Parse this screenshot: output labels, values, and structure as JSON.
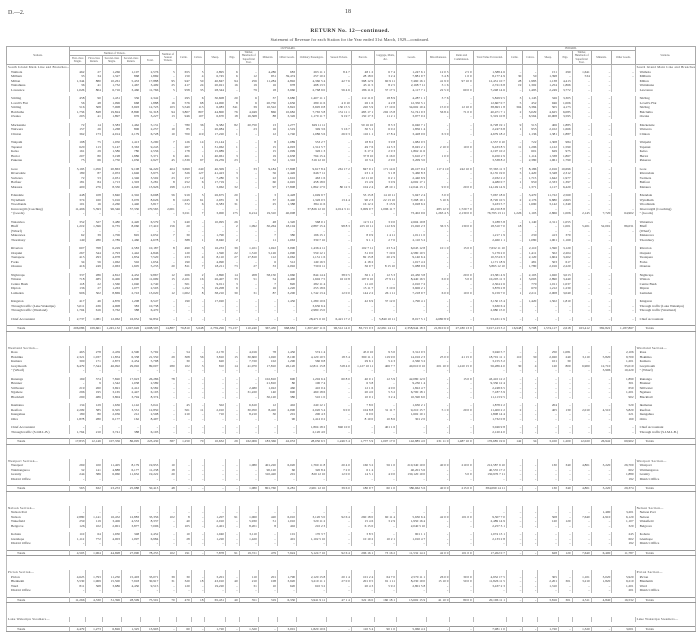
{
  "page": {
    "ref": "D.—2.",
    "number": "18",
    "title": "RETURN No. 12—continued.",
    "subtitle": "Statement of Revenue for each Station for the Year ended 31st March, 1929—continued."
  },
  "headers": {
    "stations": "Stations.",
    "outward": "OUTWARD.",
    "inward": "INWARD.",
    "tickets_group": "Number of Tickets.",
    "tickets": [
      "First-class Single.",
      "First-class Return.",
      "Second-class Single.",
      "Second-class Return.",
      "Total."
    ],
    "season": "Number of Season Tickets.",
    "outward_cols": [
      "Cattle.",
      "Calves.",
      "Sheep.",
      "Pigs.",
      "Timber, Hundreds of Superficial Feet.",
      "Minerals.",
      "Other Goods.",
      "Ordinary Passengers.",
      "Season Tickets.",
      "Parcels.",
      "Luggage, Mails, &c.",
      "Goods.",
      "Miscellaneous.",
      "Rents and Commission.",
      "Total Value Forwarded."
    ],
    "inward_cols": [
      "Cattle.",
      "Calves.",
      "Sheep.",
      "Pigs.",
      "Timber, Hundreds of Superficial Feet.",
      "Minerals.",
      "Other Goods."
    ],
    "units": [
      "Tons.",
      "Tons.",
      "£ s. d.",
      "Tons.",
      "Tons."
    ]
  },
  "sections": [
    {
      "name": "South Island Main Line and Branches—continued.",
      "groups": [
        [
          [
            "Waihola",
            "462;27;1,266;1,107;2,576;5;655;5;2,895;6;..;4,286;683;263 11 1;8 4 7;48 1 2;6 7 4;1,247 6 1;12 0 3;2 5 0;1,588 4 6;..;..;151;290;1,641;..;.."
          ],
          [
            "Milburn",
            "33;34;1,327;868;1,869;..;150;4;6,745;6;12;951;39,474;257 10 2;..;28 18 0;3 2 4;7,881 9 7;5 4 8;1 0 0;8,177 4 9;30;50;1,398;..;534;..;.."
          ],
          [
            "Milton",
            "1,344;880;10,261;5,433;17,888;95;947;50;40,847;94;256;11,284;4,892;4,360 5 4;42 7 6;368 12 9;60 9 11;7,460 16 1;41 9 0;97 10 0;12,431 10 7;28;1,983;1,138;4,413;..;.."
          ],
          [
            "Waitahuna",
            "36;41;1,732;1,467;3,409;25;417;24;20,021;16;19;16;978;498 13 5;..;43 11 5;8 2 5;2,168 7 11;3 1 6;..;2,721 6 8;19;1,302;1,254;1,866;..;.."
          ],
          [
            "Lawrence",
            "1,026;804;6,716;3,460;11,766;5;958;35;28,344;..;79;18;3,960;2,768 9 0;56 4 6;186 11 6;37 17 5;4,117 7 1;22 5 0;60 0 0;7,248 14 6;..;1,495;2,249;3,772;..;.."
          ]
        ],
        [
          [
            "Stirling",
            "458;90;1,431;336;2,342;..;295;6;30,608;20;6;37;3,680;1,407 11 1;..;112 11 0;18 8 9;4,287 1 1;3 7 6;..;5,829 9 5;3;1,145;326;3,305;..;.."
          ],
          [
            "Lovell's Flat",
            "56;48;1,096;668;1,888;16;576;68;14,000;8;6;20,750;1,656;280 11 6;4 0 10;26 1 6;4 2 8;12,350 5 1;..;..;12,667 0 7;5;452;946;1,006;..;.."
          ],
          [
            "Stirling",
            "516;508;7,008;3,693;12,723;103;5,549;113;6,083;341;39;10,522;3,822;3,695 0 8;130 15 5;220 5 9;17 10 6;34,602 19 4;15 0 0;12 10 0;38,693 1 8;304;3,384;505;4,173;..;.."
          ],
          [
            "Balclutha",
            "1,756;848;19,824;8,890;31,318;94;3,807;807;44,800;76;4,049;866;10,682;7,765 5 8;151 11 1;483 17 1;202 15 8;31,741 9 3;56 8 4;71 0 0;40,471 7 1;2;3,029;4,625;6,085;..;.."
          ],
          [
            "Owaka",
            "203;41;1,897;976;3,227;13;946;107;6,670;18;16,368;88;3,326;1,170 11 7;9 19 7;150 17 3;11 2 1;3,977 0 2;..;..;5,319 10 8;..;6,564;10,908;3,595;..;.."
          ]
        ],
        [
          [
            "Mackenzie",
            "72;14;3,583;1,462;5,131;..;780;36;9,382;82;20,750;13;1,277;629 11 11;..;50 16 10;8 3 3;6,040 7 1;..;..;6,728 19 1;9;513;406;1,885;..;.."
          ],
          [
            "Waiwera",
            "157;26;1,268;806;2,257;10;85;..;20,084;..;23;16;1,519;349 3 6;5 16 7;30 5 1;6 0 2;1,856 1 4;..;..;2,247 6 8;1;955;2,102;1,666;..;.."
          ],
          [
            "Clinton",
            "362;173;4,014;2,179;6,728;10;700;119;17,220;1;..;12;1,740;1,086 5 6;26 0 3;116 1 1;17 8 4;3,428 0 0;6 3 0;..;4,679 18 2;..;1,136;1,381;1,887;..;.."
          ]
        ],
        [
          [
            "Waipahi",
            "198;75;1,050;1,413;3,290;7;126;14;15,144;..;..;8;1,089;553 2 7;..;18 8 2;3 9 8;1,982 0 5;..;..;2,557 0 10;..;722;1,308;984;..;.."
          ],
          [
            "Tapanui",
            "620;113;5,147;3,363;9,243;..;267;1;31,062;1;..;15;4,093;1,312 5 7;..;49 7 6;14 3 3;8,045 2 1;2 10 0;10 0 0;9,433 8 5;11;1,296;1,122;1,590;..;.."
          ],
          [
            "Kelso",
            "161;29;1,586;780;2,556;..;178;..;15,989;..;..;15;1,099;326 1 3;..;6 17 2;2 0 3;1,862 11 6;..;..;2,197 10 2;..;601;629;975;..;.."
          ],
          [
            "Heriot",
            "207;80;3,198;1,886;5,371;6;401;1;40,961;3;..;19;2,638;794 15 4;..;37 8 10;6 16 0;5,610 2 7;1 0 0;..;6,450 2 9;..;1,114;1,338;1,867;..;.."
          ],
          [
            "Pukerau",
            "75;66;1,750;1,036;2,927;45;1,339;97;19,259;23;..;52;1,316;316 12 10;..;10 3 4;2 9 0;3,209 3 0;..;..;3,538 8 2;..;2,380;1,961;1,790;..;.."
          ]
        ],
        [
          [
            "Gore",
            "3,193;1,056;20,863;9,108;34,220;404;3,699;240;40,309;..;33;9,184;17,808;9,617 8 4;261 17 2;847 9 1;171 14 6;26,107 9 4;117 2 10;242 10 0;37,365 11 3;7;8,186;2,916;10,696;..;.."
          ],
          [
            "Riversdale",
            "189;87;2,053;1,646;3,975;12;326;127;41,423;3;..;56;2,426;646 7 11;..;23 1 2;5 1 8;5,460 8 3;..;..;6,135 19 0;5;1,420;3,348;2,312;..;.."
          ],
          [
            "Switzers",
            "72;53;2,031;1,346;3,502;23;157;12;7,280;3;..;22;1,616;463 1 6;..;22 11 10;6 2 1;2,440 6 9;..;..;2,932 2 2;..;1,715;1,642;1,977;..;.."
          ],
          [
            "Balfour",
            "181;84;1,713;1,303;3,281;8;252;6;17,719;..;..;60;2,045;458 18 0;..;15 4 9;3 0 9;4,002 17 1;..;..;4,480 0 7;1;950;2,333;1,397;..;.."
          ],
          [
            "Mataura",
            "400;276;8,330;4,920;13,926;198;1,133;1;3,062;32;..;97;17,808;1,862 17 0;80 12 3;104 2 4;28 10 1;12,044 13 1;9 0 0;20 0 0;14,149 14 9;..;1,371;1,117;6,420;..;.."
          ]
        ],
        [
          [
            "Edendale",
            "448;108;3,840;2,302;6,698;56;919;5;26,675;20;..;3;2,428;1,049 9 7;..;53 15 8;14 10 11;5,947 2 4;3 0 0;..;7,067 18 6;..;3,470;11,722;2,569;..;.."
          ],
          [
            "Wyndham",
            "374;160;5,016;3,076;8,626;8;1,045;61;2,935;9;..;37;3,440;1,326 0 5;13 4 4;90 2 3;22 13 10;7,268 19 1;5 10 6;..;8,726 10 5;2;2,176;9,880;2,663;..;.."
          ],
          [
            "Woodlands",
            "101;16;2,260;1,440;3,817;..;372;6;6,583;31;..;25;1,388;384 11 6;..;16 12 2;3 15 9;3,028 6 2;..;..;3,433 5 7;..;1,690;3,142;1,349;..;.."
          ],
          [
            "Invercargill (Coaching)",
            "11,496;5,393;96,346;57,330;170,565;2,001;..;..;..;..;..;..;..;37,826 12 10;2,014 3 11;3,009 0 7;1,096 11 7;..;483 12 9;1,720 7 0;46,150 8 8;..;..;..;..;..;..;.."
          ],
          [
            "      \"      (Goods)",
            "..;..;..;..;..;..;3,011;7;3,000;175;6,214;19,310;40,008;..;..;..;..;73,402 9 6;1,263 4 5;2,130 0 0;76,795 13 11;1,226;1,103;2,866;1,006;2,145;7,720;64,902"
          ]
        ],
        [
          [
            "Waianiwa",
            "352;327;3,480;2,420;6,579;3;240;..;10,095;26;..;48;1,320;568 0 1;..;12 5 11;3 0 0;2,604 19 8;..;..;3,188 5 8;..;1,140;2,311;1,055;..;.."
          ],
          [
            "Bluff",
            "1,219;1,396;6,735;8,060;17,410;156;20;..;..;2;1,092;30,264;18,104;2,887 15 4;98 8 3;225 10 11;112 6 9;15,020 2 3;36 3 5;130 0 0;18,510 7 0;18;..;..;1,001;5,201;52,091;86,031"
          ],
          [
            "      (Wharf)",
            "..;..;..;..;..;..;..;..;..;..;..;..;..;..;..;..;..;..;..;..;..;..;..;..;..;..;..;.."
          ],
          [
            "Makarewa",
            "62;39;1,706;845;2,652;7;30;..;1,790;..;..;7;380;196 15 1;..;8 0 9;1 4 11;1,011 1 0;..;..;1,217 1 9;..;230;413;370;..;.."
          ],
          [
            "Thornbury",
            "149;280;2,789;1,460;4,678;..;388;1;8,940;2;..;11;1,063;339 7 10;..;9 1 1;2 7 0;2,110 5 2;..;..;2,460 1 1;..;1,080;1,901;1,169;..;.."
          ]
        ],
        [
          [
            "Riverton",
            "607;768;6,229;2,583;10,187;8;490;3;16,233;39;1,101;1,022;3,090;1,436 4 11;..;102 7 11;23 5 4;6,045 12 8;10 1 0;15 0 0;7,632 11 10;..;2,110;1,590;3,120;..;.."
          ],
          [
            "Orepuki",
            "267;344;2,793;1,442;4,846;..;120;..;1,590;22;1,310;5,126;1,090;559 12 1;..;31 0 0;7 19 6;4,580 10 5;..;..;5,179 2 0;..;1,411;502;2,204;..;.."
          ],
          [
            "Tuatapere",
            "415;293;4,978;1,834;7,520;..;233;4;8,110;27;17,810;112;2,062;1,131 1 6;..;82 15 8;20 2 9;9,140 6 4;..;..;10,374 6 3;..;2,120;1,604;3,202;..;.."
          ],
          [
            "Forks",
            "34;56;1,062;502;1,654;..;190;..;4,090;..;..;6;512;149 16 5;..;4 18 2;..;1,017 4 2;..;..;1,171 18 9;..;481;503;617;..;.."
          ],
          [
            "Otautau",
            "416;249;2,963;1,605;5,233;20;811;7;18,211;73;27;33;2,092;730 6 11;..;36 0 7;8 15 10;5,088 9 6;..;..;5,863 12 10;..;1,780;2,016;2,220;..;.."
          ]
        ],
        [
          [
            "Nightcaps",
            "337;286;4,812;4,432;9,867;12;206;2;2,890;14;208;58,150;1,960;844 14 4;38 0 5;36 1 1;12 5 3;22,430 3 8;..;20 0 0;23,381 4 9;..;2,103;1,920;3,013;..;.."
          ],
          [
            "Winton",
            "718;485;6,406;4,090;11,699;15;2,101;16;26,407;33;51;54;4,400;1,602 7 5;16 10 8;107 6 10;27 9 11;8,440 16 5;6 0 0;5 0 0;10,205 11 3;1;3,003;2,890;3,440;..;.."
          ],
          [
            "Centre Bush",
            "118;22;1,560;1,040;2,740;..;501;..;9,011;3;..;7;820;282 11 4;..;11 4 0;..;2,010 7 2;..;..;2,304 2 6;..;770;1,011;1,037;..;.."
          ],
          [
            "Dipton",
            "136;27;1,263;1,077;2,503;..;1,192;3;19,208;9;..;16;1,220;253 18 6;..;15 11 7;3 10 6;3,606 2 1;..;..;3,879 2 8;..;670;1,212;1,230;..;.."
          ],
          [
            "Lumsden",
            "906;502;8,869;2,743;13,020;12;1,002;8;38,210;30;31;87;3,200;1,742 13 4;12 0 0;144 2 2;26 1 11;7,218 9 7;6 0 0;10 0 0;9,159 7 0;1;2,211;2,008;3,040;..;.."
          ]
        ],
        [
          [
            "Kingston",
            "417;46;4,876;1,208;6,547;..;190;..;17,020;..;..;..;1,450;1,280 10 6;..;42 6 9;37 12 0;1,790 4 1;..;..;3,150 13 4;..;1,420;1,502;1,810;..;.."
          ],
          [
            "Through traffic (Lake Wakatipu)",
            "5,011;436;4,908;383;10,738;..;..;..;..;..;..;..;..;3,630 6 4;..;..;..;..;..;..;3,630 6 4;..;..;..;..;..;..;.."
          ],
          [
            "Through traffic (Westland)",
            "1,704;616;3,762;388;6,470;..;..;..;..;..;..;..;..;2,980 15 0;..;..;..;..;..;..;2,980 15 0;..;..;..;..;..;..;.."
          ]
        ],
        [
          [
            "Chief Accountant",
            "2,737;1,081;12,062;16,952;32,832;..;..;..;..;..;..;..;..;28,471 0 10;6,421 17 2;..;5,840 10 11;8,017 5 1;4,680 8 9;..;53,431 2 9;..;..;..;..;..;..;.."
          ]
        ]
      ],
      "totals": "206,086;109,661;1,245,132;1,047,626;2,608,505;14,887;76,810;3,648;2,759,296;73,137;110,240;367,430;968,682;1,307,467 11 6;96,512 14 0;83,715 0 3;22,091 14 11;2,358,944 18 3;21,810 6 0;27,180 13 0;3,917,123 3 2;16,948;3,708;1,574,117;2,618;163,412;382,822;1,187,867"
    },
    {
      "name": "Westland Section—",
      "groups": [
        [
          [
            "Ross",
            "465;278;2,459;2,590;5,792;..;54;..;2,170;..;4,016;78;1,450;574 1 4;..;45 0 10;9 3 0;3,312 0 5;..;..;3,940 5 7;..;..;250;1,081;..;..;2,106"
          ],
          [
            "Hokitika",
            "2,321;1,037;11,854;6,338;21,550;29;308;56;3,810;15;30,600;1,020;8,100;4,120 10 5;18 3 4;360 11 1;119 9 0;14,016 2 3;25 0 0;41 15 0;18,701 11 1;110;30;2,020;240;3,110;5,820;9,700"
          ],
          [
            "Kumara",
            "300;171;2,873;2,454;5,798;..;30;..;620;..;7,720;102;1,290;560 9 8;..;29 6 1;5 4 3;2,560 3 2;..;..;3,155 3 2;..;..;101;30;..;..;1,201"
          ],
          [
            "Greymouth",
            "6,479;7,344;46,092;29,092;89,007;280;102;3;810;14;41,070;17,810;26,120;12,811 15 8;318 4 0;1,127 10 11;406 7 7;40,010 0 10;201 10 0;1,410 15 0;56,286 4 0;30;4;120;800;6,900;12,710;35,010"
          ],
          [
            "      \"      (Wharf)",
            "..;..;..;..;..;..;..;..;..;..;..;..;..;..;..;..;..;..;..;..;..;..;..;..;..;..;3,906;10,220"
          ]
        ],
        [
          [
            "Runanga",
            "169;374;7,820;17,923;26,286;78;..;..;..;..;..;102,810;690;1,202 6 4;60 8 0;40 0 1;12 5 9;42,080 12 0;..;15 0 0;43,410 12 2;..;..;..;..;..;..;1,890"
          ],
          [
            "Brunner",
            "..;9;1,542;1,038;2,589;..;..;..;..;..;..;21,810;80;100 7 4;..;6 3 8;..;9,230 1 4;..;..;9,336 12 4;..;..;..;..;..;..;301"
          ],
          [
            "Stillwater",
            "219;260;3,691;2,412;6,582;..;..;..;..;..;2,480;1,022;460;410 0 4;..;12 1 6;4 0 0;1,822 4 7;..;..;2,248 6 5;..;..;..;..;..;..;650"
          ],
          [
            "Ngahere",
            "296;195;3,165;2,447;6,103;..;..;..;..;..;31,220;140;690;460 18 6;..;20 4 0;5 3 2;6,700 18 1;..;..;7,187 3 9;..;..;..;..;..;..;1,201"
          ],
          [
            "Blackball",
            "290;486;3,804;3,794;8,374;..;..;..;..;..;..;30,120;380;510 1 0;..;10 0 1;3 2 4;10,590 6 0;..;..;11,113 9 5;..;..;..;..;..;..;902"
          ]
        ],
        [
          [
            "Ikamatua",
            "134;129;1,636;1,142;3,041;..;45;..;502;..;6,610;12;402;240 12 1;..;7 8 0;..;1,630 2 1;..;..;1,878 2 2;..;..;204;..;..;..;520"
          ],
          [
            "Reefton",
            "2,209;585;6,505;3,551;12,850;..;501;11;2,010;..;30,050;8,420;2,090;2,020 5 4;9 0 0;104 8 8;31 11 7;9,210 15 7;5 1 0;20 0 0;11,400 2 2;2;..;405;130;2,010;4,510;5,820"
          ],
          [
            "Inangahua",
            "180;80;2,036;212;2,508;..;210;..;710;..;8,210;30;201;200 4 3;..;6 0 0;..;1,602 10 1;..;..;1,808 14 4;..;..;..;..;..;..;221"
          ],
          [
            "Otira",
            "1,878;280;6,177;162;8,497;..;..;..;..;..;..;..;90;1,412 0 2;..;8 10 0;10 8 6;301 2 0;..;..;1,732 0 8;..;..;..;..;..;..;160"
          ]
        ],
        [
          [
            "Chief Accountant",
            "..;..;..;..;..;..;..;..;..;..;..;..;..;1,804 18 2;840 10 0;..;401 1 6;..;..;..;3,046 9 8;..;..;..;..;..;..;.."
          ],
          [
            "Through traffic (S.I.M.L.B.)",
            "1,764;210;3,741;388;6,103;..;..;..;..;..;..;..;..;2,120 4 0;..;..;..;..;..;..;2,120 4 0;..;..;..;..;..;..;.."
          ]
        ]
      ],
      "totals": "17,833;12,146;107,356;86,095;223,430;387;1,250;70;10,632;29;162,006;183,366;42,053;28,050 6 5;1,246 5 4;1,777 5 9;1,007 17 0;142,885 4 0;231 11 0;1,487 10 0;176,685 19 6;142;34;3,100;1,200;12,020;26,942;69,902"
    },
    {
      "name": "Westport Section—",
      "groups": [
        [
          [
            "Westport",
            "269;100;11,405;8,179;19,953;10;..;..;..;..;1,080;401,220;6,020;1,760 11 8;20 4 0;160 3 2;56 1 0;210,340 10 0;40 0 0;210 0 0;212,587 9 10;..;..;130;340;4,801;3,220;26,700"
          ],
          [
            "Waimangaroa",
            "32;141;4,888;6,177;11,238;18;..;..;..;..;..;90,120;60;320 8 4;7 2 0;6 1 4;..;40,201 5 6;..;..;40,535 17 2;..;..;..;..;..;..;602"
          ],
          [
            "Granity",
            "244;386;6,960;11,632;19,222;20;..;..;..;..;..;310,420;201;820 12 10;12 0 0;14 5 1;4 0 0;130,120 10 0;..;5 0 0;130,976 7 11;..;..;..;..;..;..;1,880"
          ],
          [
            "District Office",
            "..;..;..;..;..;..;..;..;..;..;..;..;..;..;..;..;..;..;..;..;..;..;..;..;..;..;..;192"
          ]
        ]
      ],
      "totals": "565;632;23,253;25,988;50,413;48;..;..;..;..;1,080;801,760;6,281;2,901 12 10;39 6 0;180 9 7;60 1 0;380,662 5 6;40 0 0;215 0 0;384,099 14 11;..;..;130;340;4,801;3,220;29,374"
    },
    {
      "name": "Nelson Section—",
      "groups": [
        [
          [
            "Nelson Port",
            "..;..;..;..;..;..;..;..;..;..;..;..;..;..;..;..;..;..;..;..;..;..;..;..;..;..;1,490;3,201"
          ],
          [
            "Nelson",
            "2,880;1,141;16,452;12,883;33,356;102;8;..;1,207;91;1,060;420;6,010;3,120 5 0;92 6 4;260 18 0;60 11 4;5,630 6 4;42 0 0;101 0 0;9,307 7 0;..;..;508;..;7,640;4,910;6,120"
          ],
          [
            "Wakefield",
            "259;119;3,406;4,553;8,337;..;40;..;2,010;..;5,930;51;1,010;520 11 2;..;15 4 6;3 2 9;1,950 16 4;..;..;2,489 14 9;..;..;120;120;..;..;1,107"
          ],
          [
            "Belgrove",
            "126;102;2,901;3,877;7,006;..;105;..;2,401;..;8,201;8;402;210 2 3;..;6 15 0;..;2,040 5 10;..;..;2,257 3 1;..;..;..;..;..;..;320"
          ]
        ],
        [
          [
            "Kohatu",
            "110;64;1,930;348;2,452;..;10;..;1,040;..;3,110;..;101;170 3 7;..;3 8 5;..;901 1 1;..;..;1,074 13 1;..;..;..;..;..;..;245"
          ],
          [
            "Glenhope",
            "1,112;772;4,003;1,097;6,984;..;28;..;1,220;..;1,420;..;401;1,102 5 10;..;10 10 2;10 2 1;1,010 4 7;..;..;2,133 2 8;..;..;..;..;..;..;602"
          ],
          [
            "District Office",
            "..;..;..;..;..;..;..;..;..;..;..;..;..;..;..;..;..;..;..;..;..;..;..;..;..;..;..;192"
          ]
        ]
      ],
      "totals": "4,503;1,964;44,698;27,090;78,255;102;191;..;7,878;91;19,721;479;7,924;5,124 7 10;92 6 4;296 16 1;73 16 2;11,532 14 2;42 0 0;101 0 0;17,262 0 7;..;..;628;120;7,640;6,400;11,787"
    },
    {
      "name": "Picton Section—",
      "groups": [
        [
          [
            "Picton",
            "4,625;1,793;11,250;15,403;33,071;39;30;..;3,201;..;110;201;1,790;2,120 15 8;20 1 4;101 2 4;64 7 0;2,570 11 1;26 0 0;30 0 0;4,932 17 5;..;..;305;..;1,101;3,020;5,920"
          ],
          [
            "Blenheim",
            "5,530;1,969;15,500;7,918;30,917;31;320;18;43,010;40;210;108;3,920;3,210 11 1;27 0 0;201 9 5;91 1 11;8,230 19 0;15 10 0;50 0 0;11,826 11 5;..;..;2,201;301;3,210;1,820;9,210"
          ],
          [
            "Ward",
            "811;568;3,686;4,450;9,515;..;120;..;19,220;..;31;10;620;610 3 2;..;20 4 3;5 9 2;2,801 5 8;..;..;3,437 2 3;..;..;1,310;..;..;..;1,201"
          ],
          [
            "District Office",
            "..;..;..;..;..;..;..;..;..;..;..;..;..;..;..;..;..;..;..;..;..;..;..;..;..;..;..;201"
          ]
        ]
      ],
      "totals": "11,266;4,330;31,396;28,509;75,501;70;470;18;65,431;40;351;319;6,330;5,941 9 11;47 1 4;322 16 0;160 18 1;13,602 15 9;41 10 0;80 0 0;20,196 11 1;..;..;3,816;301;4,311;4,840;16,532"
    },
    {
      "name": "Lake Wakatipu Steamers—",
      "groups": [],
      "totals": "4,479;1,273;6,826;1,325;13,903;..;60;..;1,720;..;1,320;..;3,001;1,820 10 6;..;110 5 4;90 1 0;5,960 4 2;..;..;7,981 1 0;..;..;1,720;..;1,320;..;3,001"
    }
  ],
  "totals_label": "Totals",
  "colors": {
    "ink": "#333333",
    "rule": "#aaaaaa"
  }
}
